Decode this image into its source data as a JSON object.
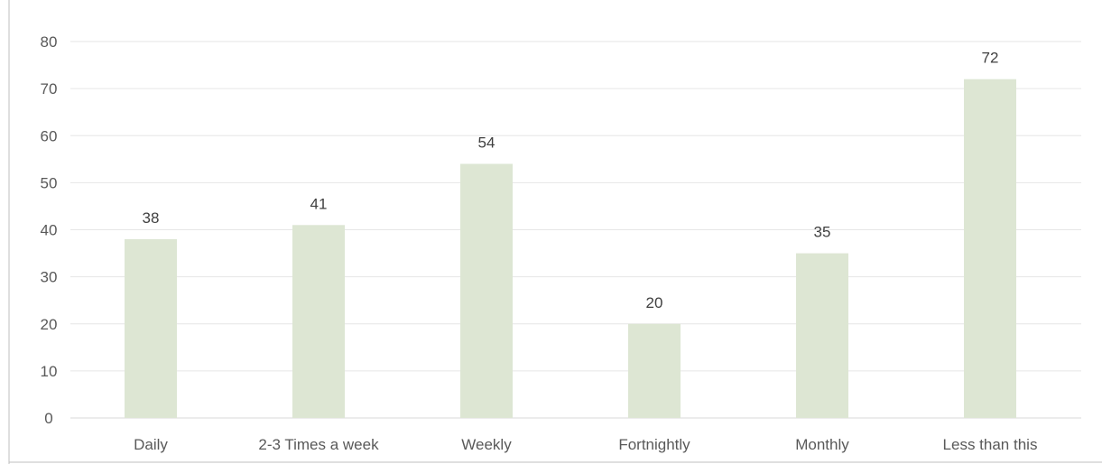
{
  "chart_data": {
    "type": "bar",
    "title": "",
    "xlabel": "",
    "ylabel": "",
    "categories": [
      "Daily",
      "2-3 Times a week",
      "Weekly",
      "Fortnightly",
      "Monthly",
      "Less than this"
    ],
    "values": [
      38,
      41,
      54,
      20,
      35,
      72
    ],
    "ylim": [
      0,
      80
    ],
    "yticks": [
      0,
      10,
      20,
      30,
      40,
      50,
      60,
      70,
      80
    ],
    "grid": true,
    "legend": "none",
    "bar_color": "#dde6d3",
    "grid_color": "#e6e6e6",
    "label_color": "#595959"
  }
}
